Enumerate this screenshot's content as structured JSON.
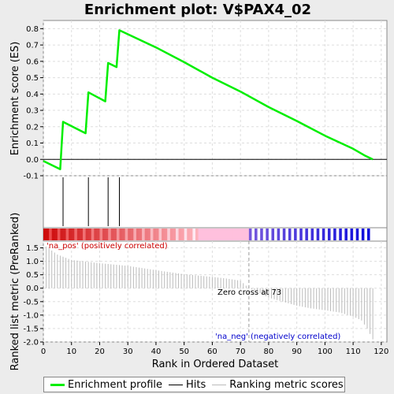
{
  "title": "Enrichment plot: V$PAX4_02",
  "colors": {
    "es": "#00ee00",
    "hit": "#000000",
    "metric": "#bbbbbb",
    "pos": "#cc0000",
    "neg": "#0000cc",
    "zeroline": "#999999"
  },
  "top_panel": {
    "ylabel": "Enrichment score (ES)",
    "y_ticks": [
      "0.8",
      "0.7",
      "0.6",
      "0.5",
      "0.4",
      "0.3",
      "0.2",
      "0.1",
      "0.0",
      "-0.1"
    ]
  },
  "bottom_panel": {
    "ylabel": "Ranked list metric (PreRanked)",
    "y_ticks": [
      "1.5",
      "1.0",
      "0.5",
      "0.0",
      "-0.5",
      "-1.0",
      "-1.5",
      "-2.0"
    ],
    "pos_label": "'na_pos' (positively correlated)",
    "neg_label": "'na_neg' (negatively correlated)",
    "zero_cross_label": "Zero cross at 73"
  },
  "xlabel": "Rank in Ordered Dataset",
  "x_ticks": [
    "0",
    "10",
    "20",
    "30",
    "40",
    "50",
    "60",
    "70",
    "80",
    "90",
    "100",
    "110",
    "120"
  ],
  "legend": [
    {
      "label": "Enrichment profile",
      "color": "#00ee00"
    },
    {
      "label": "Hits",
      "color": "#000000"
    },
    {
      "label": "Ranking metric scores",
      "color": "#bbbbbb"
    }
  ],
  "chart_data": {
    "type": "line",
    "title": "Enrichment plot: V$PAX4_02",
    "xlabel": "Rank in Ordered Dataset",
    "ylabel": "Enrichment score (ES)",
    "xlim": [
      0,
      122
    ],
    "ylim_es": [
      -0.1,
      0.85
    ],
    "ylim_metric": [
      -2.0,
      1.75
    ],
    "zero_cross": 73,
    "n_genes": 117,
    "hits": [
      7,
      16,
      23,
      27
    ],
    "es_profile": [
      [
        0,
        -0.01
      ],
      [
        6,
        -0.06
      ],
      [
        7,
        0.23
      ],
      [
        15,
        0.16
      ],
      [
        16,
        0.41
      ],
      [
        22,
        0.355
      ],
      [
        23,
        0.59
      ],
      [
        26,
        0.565
      ],
      [
        27,
        0.79
      ],
      [
        40,
        0.685
      ],
      [
        50,
        0.595
      ],
      [
        60,
        0.5
      ],
      [
        70,
        0.415
      ],
      [
        80,
        0.32
      ],
      [
        90,
        0.235
      ],
      [
        100,
        0.145
      ],
      [
        110,
        0.065
      ],
      [
        114,
        0.025
      ],
      [
        117,
        0.0
      ]
    ],
    "metric_curve": [
      [
        1,
        1.55
      ],
      [
        5,
        1.25
      ],
      [
        10,
        1.05
      ],
      [
        20,
        0.93
      ],
      [
        30,
        0.83
      ],
      [
        40,
        0.67
      ],
      [
        50,
        0.52
      ],
      [
        60,
        0.42
      ],
      [
        65,
        0.36
      ],
      [
        70,
        0.28
      ],
      [
        73,
        0.0
      ],
      [
        75,
        -0.08
      ],
      [
        80,
        -0.35
      ],
      [
        85,
        -0.5
      ],
      [
        90,
        -0.65
      ],
      [
        95,
        -0.75
      ],
      [
        100,
        -0.82
      ],
      [
        105,
        -0.9
      ],
      [
        110,
        -1.05
      ],
      [
        113,
        -1.2
      ],
      [
        115,
        -1.5
      ],
      [
        117,
        -1.9
      ]
    ]
  }
}
